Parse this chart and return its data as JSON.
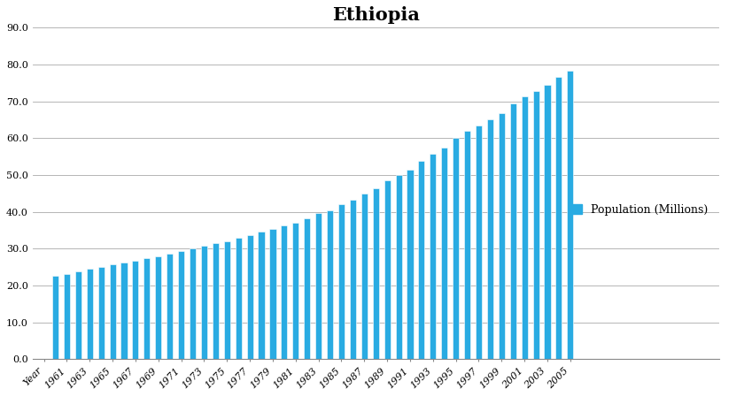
{
  "title": "Ethiopia",
  "bar_color": "#29ABE2",
  "bar_edge_color": "#ffffff",
  "legend_label": "Population (Millions)",
  "legend_color": "#29ABE2",
  "ylim": [
    0,
    90
  ],
  "ytick_vals": [
    0.0,
    10.0,
    20.0,
    30.0,
    40.0,
    50.0,
    60.0,
    70.0,
    80.0,
    90.0
  ],
  "xtick_labels": [
    "Year",
    "1961",
    "1963",
    "1965",
    "1967",
    "1969",
    "1971",
    "1973",
    "1975",
    "1977",
    "1979",
    "1981",
    "1983",
    "1985",
    "1987",
    "1989",
    "1991",
    "1993",
    "1995",
    "1997",
    "1999",
    "2001",
    "2003",
    "2005"
  ],
  "bar_years": [
    1960,
    1961,
    1962,
    1963,
    1964,
    1965,
    1966,
    1967,
    1968,
    1969,
    1970,
    1971,
    1972,
    1973,
    1974,
    1975,
    1976,
    1977,
    1978,
    1979,
    1980,
    1981,
    1982,
    1983,
    1984,
    1985,
    1986,
    1987,
    1988,
    1989,
    1990,
    1991,
    1992,
    1993,
    1994,
    1995,
    1996,
    1997,
    1998,
    1999,
    2000,
    2001,
    2002,
    2003,
    2004,
    2005
  ],
  "bar_values": [
    22.5,
    23.2,
    23.9,
    24.5,
    25.1,
    25.7,
    26.2,
    26.8,
    27.3,
    27.9,
    28.5,
    29.3,
    30.1,
    30.8,
    31.4,
    32.0,
    32.9,
    33.7,
    34.5,
    35.4,
    36.2,
    37.1,
    38.2,
    39.6,
    40.4,
    42.1,
    43.3,
    44.9,
    46.4,
    48.6,
    49.9,
    51.5,
    53.7,
    55.8,
    57.5,
    60.0,
    62.1,
    63.4,
    65.1,
    66.9,
    69.5,
    71.4,
    72.8,
    74.4,
    76.6,
    78.2
  ],
  "title_fontsize": 15,
  "tick_fontsize": 8,
  "legend_fontsize": 9,
  "bar_width": 0.55,
  "grid_color": "#aaaaaa",
  "grid_linewidth": 0.6
}
